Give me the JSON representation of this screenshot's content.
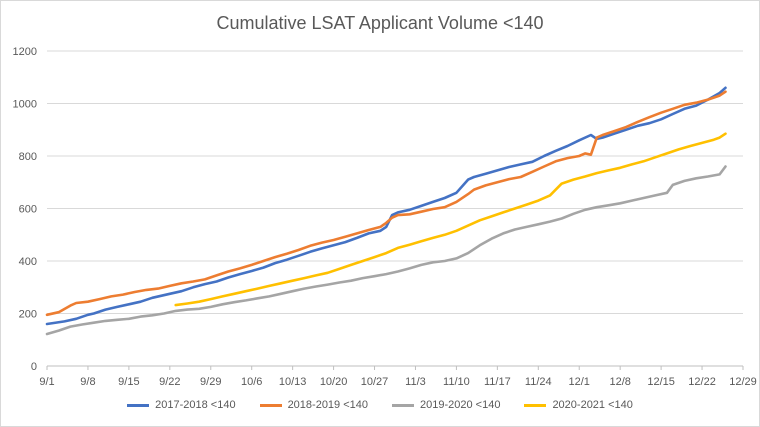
{
  "chart_data": {
    "type": "line",
    "title": "Cumulative LSAT Applicant Volume <140",
    "xlabel": "",
    "ylabel": "",
    "ylim": [
      0,
      1200
    ],
    "yticks": [
      0,
      200,
      400,
      600,
      800,
      1000,
      1200
    ],
    "x_tick_labels": [
      "9/1",
      "9/8",
      "9/15",
      "9/22",
      "9/29",
      "10/6",
      "10/13",
      "10/20",
      "10/27",
      "11/3",
      "11/10",
      "11/17",
      "11/24",
      "12/1",
      "12/8",
      "12/15",
      "12/22",
      "12/29"
    ],
    "grid": true,
    "legend_position": "bottom",
    "series": [
      {
        "name": "2017-2018 <140",
        "color": "#4472c4",
        "points": [
          [
            0,
            160
          ],
          [
            3,
            170
          ],
          [
            5,
            180
          ],
          [
            7,
            195
          ],
          [
            8,
            200
          ],
          [
            10,
            215
          ],
          [
            12,
            225
          ],
          [
            14,
            235
          ],
          [
            16,
            245
          ],
          [
            18,
            260
          ],
          [
            21,
            275
          ],
          [
            23,
            285
          ],
          [
            25,
            300
          ],
          [
            27,
            312
          ],
          [
            29,
            322
          ],
          [
            31,
            337
          ],
          [
            33,
            350
          ],
          [
            35,
            362
          ],
          [
            37,
            375
          ],
          [
            39,
            392
          ],
          [
            41,
            405
          ],
          [
            43,
            420
          ],
          [
            45,
            435
          ],
          [
            47,
            448
          ],
          [
            49,
            460
          ],
          [
            51,
            472
          ],
          [
            53,
            488
          ],
          [
            55,
            505
          ],
          [
            57,
            515
          ],
          [
            58,
            530
          ],
          [
            59,
            575
          ],
          [
            60,
            585
          ],
          [
            62,
            595
          ],
          [
            64,
            610
          ],
          [
            66,
            625
          ],
          [
            68,
            640
          ],
          [
            70,
            660
          ],
          [
            72,
            710
          ],
          [
            73,
            720
          ],
          [
            75,
            732
          ],
          [
            77,
            745
          ],
          [
            79,
            758
          ],
          [
            81,
            768
          ],
          [
            83,
            778
          ],
          [
            85,
            800
          ],
          [
            87,
            820
          ],
          [
            89,
            838
          ],
          [
            91,
            860
          ],
          [
            93,
            880
          ],
          [
            94,
            865
          ],
          [
            95,
            870
          ],
          [
            97,
            885
          ],
          [
            99,
            900
          ],
          [
            101,
            915
          ],
          [
            103,
            925
          ],
          [
            105,
            940
          ],
          [
            107,
            960
          ],
          [
            109,
            980
          ],
          [
            111,
            992
          ],
          [
            113,
            1015
          ],
          [
            115,
            1040
          ],
          [
            116,
            1060
          ]
        ]
      },
      {
        "name": "2018-2019 <140",
        "color": "#ed7d31",
        "points": [
          [
            0,
            195
          ],
          [
            2,
            205
          ],
          [
            4,
            230
          ],
          [
            5,
            240
          ],
          [
            7,
            245
          ],
          [
            9,
            255
          ],
          [
            11,
            265
          ],
          [
            13,
            272
          ],
          [
            15,
            282
          ],
          [
            17,
            290
          ],
          [
            19,
            295
          ],
          [
            21,
            305
          ],
          [
            23,
            315
          ],
          [
            25,
            322
          ],
          [
            27,
            330
          ],
          [
            29,
            345
          ],
          [
            31,
            360
          ],
          [
            33,
            372
          ],
          [
            35,
            385
          ],
          [
            37,
            400
          ],
          [
            39,
            415
          ],
          [
            41,
            428
          ],
          [
            43,
            442
          ],
          [
            45,
            458
          ],
          [
            47,
            470
          ],
          [
            49,
            480
          ],
          [
            51,
            492
          ],
          [
            53,
            505
          ],
          [
            55,
            518
          ],
          [
            57,
            530
          ],
          [
            58,
            545
          ],
          [
            59,
            565
          ],
          [
            60,
            575
          ],
          [
            62,
            578
          ],
          [
            64,
            588
          ],
          [
            66,
            598
          ],
          [
            68,
            605
          ],
          [
            70,
            625
          ],
          [
            72,
            655
          ],
          [
            73,
            672
          ],
          [
            75,
            688
          ],
          [
            77,
            700
          ],
          [
            79,
            712
          ],
          [
            81,
            720
          ],
          [
            83,
            740
          ],
          [
            85,
            760
          ],
          [
            87,
            780
          ],
          [
            89,
            792
          ],
          [
            91,
            800
          ],
          [
            92,
            810
          ],
          [
            93,
            805
          ],
          [
            94,
            870
          ],
          [
            95,
            880
          ],
          [
            97,
            895
          ],
          [
            99,
            910
          ],
          [
            101,
            930
          ],
          [
            103,
            948
          ],
          [
            105,
            965
          ],
          [
            107,
            980
          ],
          [
            109,
            995
          ],
          [
            111,
            1003
          ],
          [
            113,
            1015
          ],
          [
            115,
            1030
          ],
          [
            116,
            1045
          ]
        ]
      },
      {
        "name": "2019-2020 <140",
        "color": "#a5a5a5",
        "points": [
          [
            0,
            122
          ],
          [
            2,
            135
          ],
          [
            4,
            150
          ],
          [
            6,
            158
          ],
          [
            8,
            165
          ],
          [
            10,
            172
          ],
          [
            12,
            176
          ],
          [
            14,
            180
          ],
          [
            16,
            188
          ],
          [
            18,
            193
          ],
          [
            20,
            200
          ],
          [
            22,
            210
          ],
          [
            24,
            215
          ],
          [
            26,
            218
          ],
          [
            28,
            225
          ],
          [
            30,
            235
          ],
          [
            32,
            243
          ],
          [
            34,
            250
          ],
          [
            36,
            258
          ],
          [
            38,
            265
          ],
          [
            40,
            275
          ],
          [
            42,
            285
          ],
          [
            44,
            295
          ],
          [
            46,
            303
          ],
          [
            48,
            310
          ],
          [
            50,
            318
          ],
          [
            52,
            325
          ],
          [
            54,
            335
          ],
          [
            56,
            342
          ],
          [
            58,
            350
          ],
          [
            60,
            360
          ],
          [
            62,
            372
          ],
          [
            64,
            385
          ],
          [
            66,
            395
          ],
          [
            68,
            400
          ],
          [
            70,
            410
          ],
          [
            72,
            430
          ],
          [
            74,
            460
          ],
          [
            76,
            485
          ],
          [
            78,
            505
          ],
          [
            80,
            520
          ],
          [
            82,
            530
          ],
          [
            84,
            540
          ],
          [
            86,
            550
          ],
          [
            88,
            562
          ],
          [
            90,
            580
          ],
          [
            92,
            595
          ],
          [
            94,
            605
          ],
          [
            96,
            612
          ],
          [
            98,
            620
          ],
          [
            100,
            630
          ],
          [
            102,
            640
          ],
          [
            104,
            650
          ],
          [
            106,
            660
          ],
          [
            107,
            690
          ],
          [
            109,
            705
          ],
          [
            111,
            715
          ],
          [
            113,
            722
          ],
          [
            115,
            730
          ],
          [
            116,
            760
          ]
        ]
      },
      {
        "name": "2020-2021 <140",
        "color": "#ffc000",
        "points": [
          [
            22,
            232
          ],
          [
            24,
            238
          ],
          [
            26,
            245
          ],
          [
            28,
            255
          ],
          [
            30,
            265
          ],
          [
            32,
            275
          ],
          [
            34,
            285
          ],
          [
            36,
            295
          ],
          [
            38,
            305
          ],
          [
            40,
            315
          ],
          [
            42,
            325
          ],
          [
            44,
            335
          ],
          [
            46,
            345
          ],
          [
            48,
            355
          ],
          [
            50,
            370
          ],
          [
            52,
            385
          ],
          [
            54,
            400
          ],
          [
            56,
            415
          ],
          [
            58,
            430
          ],
          [
            60,
            450
          ],
          [
            62,
            462
          ],
          [
            64,
            475
          ],
          [
            66,
            488
          ],
          [
            68,
            500
          ],
          [
            70,
            515
          ],
          [
            72,
            535
          ],
          [
            74,
            555
          ],
          [
            76,
            570
          ],
          [
            78,
            585
          ],
          [
            80,
            600
          ],
          [
            82,
            615
          ],
          [
            84,
            630
          ],
          [
            86,
            650
          ],
          [
            88,
            695
          ],
          [
            90,
            710
          ],
          [
            92,
            722
          ],
          [
            94,
            735
          ],
          [
            96,
            745
          ],
          [
            98,
            755
          ],
          [
            100,
            768
          ],
          [
            102,
            780
          ],
          [
            104,
            795
          ],
          [
            106,
            810
          ],
          [
            108,
            825
          ],
          [
            110,
            838
          ],
          [
            112,
            850
          ],
          [
            114,
            862
          ],
          [
            115,
            870
          ],
          [
            116,
            885
          ]
        ]
      }
    ]
  }
}
